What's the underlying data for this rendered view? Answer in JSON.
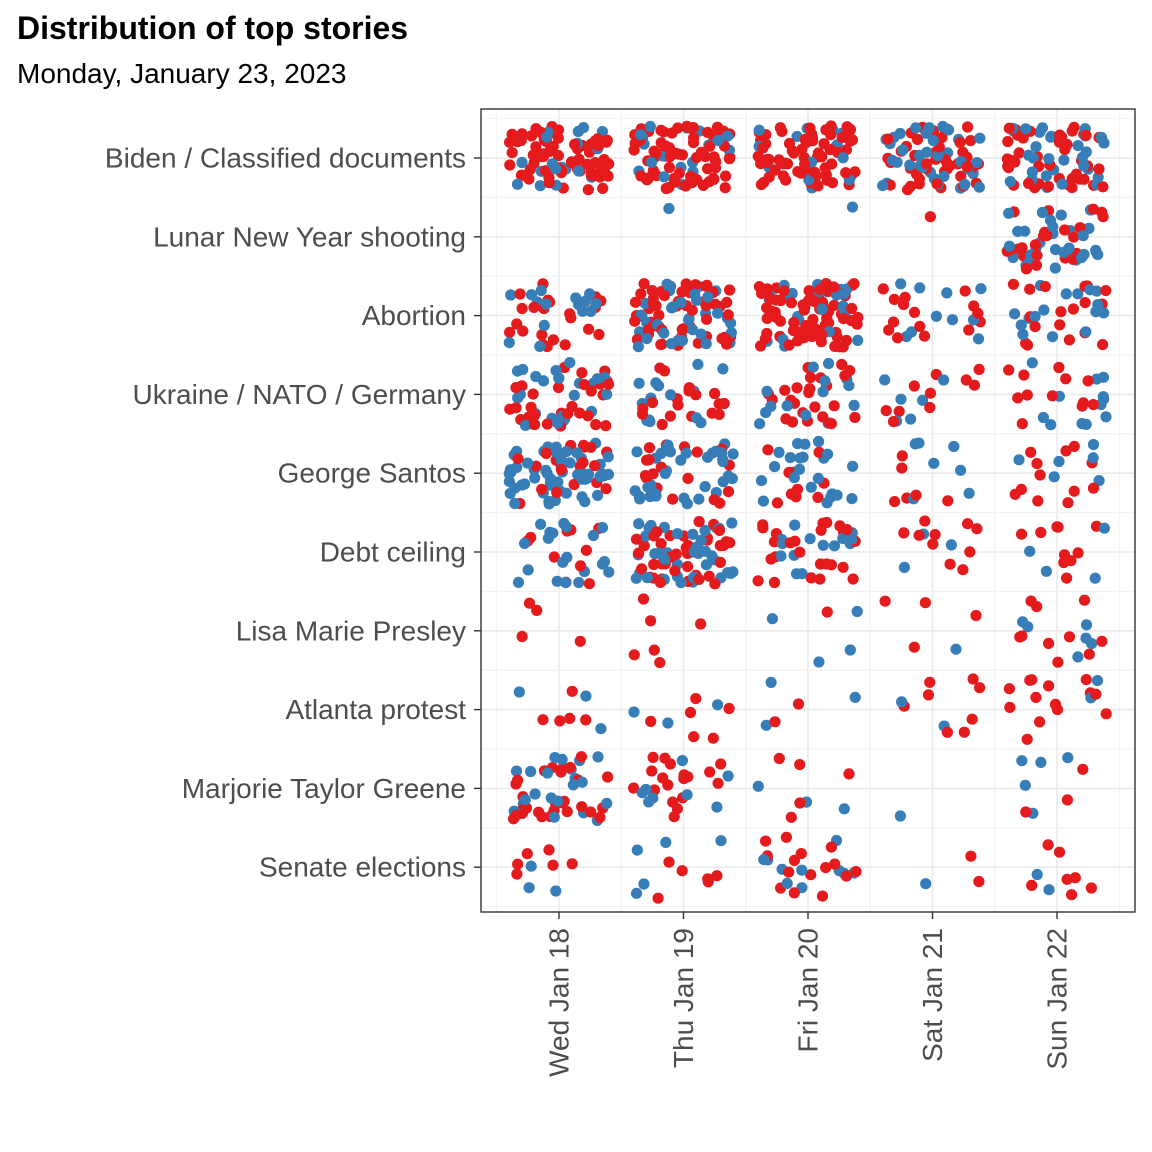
{
  "chart_data": {
    "type": "scatter",
    "title": "Distribution of top stories",
    "subtitle": "Monday, January 23, 2023",
    "x_categories": [
      "Wed Jan 18",
      "Thu Jan 19",
      "Fri Jan 20",
      "Sat Jan 21",
      "Sun Jan 22"
    ],
    "y_categories": [
      "Biden / Classified documents",
      "Lunar New Year shooting",
      "Abortion",
      "Ukraine / NATO / Germany",
      "George Santos",
      "Debt ceiling",
      "Lisa Marie Presley",
      "Atlanta protest",
      "Marjorie Taylor Greene",
      "Senate elections"
    ],
    "colors": {
      "red": "#e41a1c",
      "blue": "#377eb8"
    },
    "grid": true,
    "legend": "none",
    "point_counts": [
      [
        [
          70,
          20
        ],
        [
          70,
          20
        ],
        [
          70,
          15
        ],
        [
          45,
          35
        ],
        [
          45,
          30
        ]
      ],
      [
        [
          0,
          0
        ],
        [
          0,
          1
        ],
        [
          0,
          1
        ],
        [
          1,
          0
        ],
        [
          25,
          30
        ]
      ],
      [
        [
          22,
          15
        ],
        [
          55,
          35
        ],
        [
          75,
          25
        ],
        [
          15,
          10
        ],
        [
          18,
          16
        ]
      ],
      [
        [
          30,
          25
        ],
        [
          18,
          14
        ],
        [
          25,
          14
        ],
        [
          10,
          6
        ],
        [
          12,
          12
        ]
      ],
      [
        [
          20,
          55
        ],
        [
          18,
          35
        ],
        [
          10,
          22
        ],
        [
          6,
          7
        ],
        [
          12,
          6
        ]
      ],
      [
        [
          10,
          20
        ],
        [
          40,
          40
        ],
        [
          25,
          14
        ],
        [
          10,
          3
        ],
        [
          10,
          4
        ]
      ],
      [
        [
          4,
          0
        ],
        [
          6,
          0
        ],
        [
          1,
          4
        ],
        [
          4,
          1
        ],
        [
          10,
          6
        ]
      ],
      [
        [
          5,
          3
        ],
        [
          6,
          3
        ],
        [
          2,
          3
        ],
        [
          8,
          2
        ],
        [
          14,
          2
        ]
      ],
      [
        [
          28,
          22
        ],
        [
          18,
          8
        ],
        [
          5,
          3
        ],
        [
          0,
          1
        ],
        [
          3,
          5
        ]
      ],
      [
        [
          6,
          3
        ],
        [
          6,
          5
        ],
        [
          15,
          10
        ],
        [
          2,
          1
        ],
        [
          7,
          2
        ]
      ]
    ]
  }
}
